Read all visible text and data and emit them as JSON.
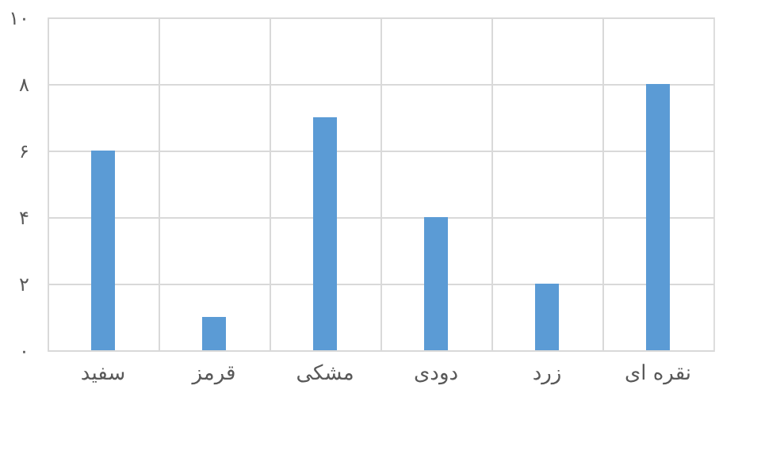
{
  "chart_data": {
    "type": "bar",
    "categories": [
      "سفید",
      "قرمز",
      "مشکی",
      "دودی",
      "زرد",
      "نقره ای"
    ],
    "values": [
      6,
      1,
      7,
      4,
      2,
      8
    ],
    "color": "#5b9bd5",
    "ylim": [
      0,
      10
    ],
    "yticks": [
      {
        "value": 0,
        "label": "۰"
      },
      {
        "value": 2,
        "label": "۲"
      },
      {
        "value": 4,
        "label": "۴"
      },
      {
        "value": 6,
        "label": "۶"
      },
      {
        "value": 8,
        "label": "۸"
      },
      {
        "value": 10,
        "label": "۱۰"
      }
    ],
    "grid": true
  }
}
